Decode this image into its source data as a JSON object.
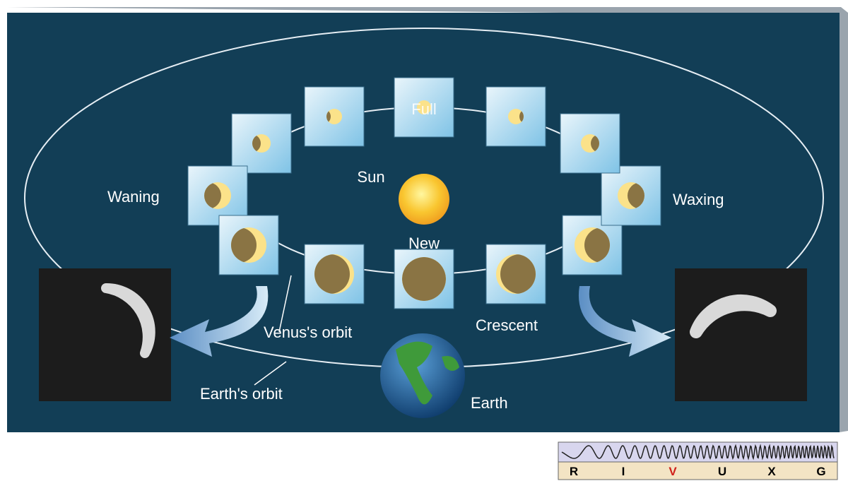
{
  "labels": {
    "full": "Full",
    "sun": "Sun",
    "new": "New",
    "waning": "Waning",
    "waxing": "Waxing",
    "crescent": "Crescent",
    "venus_orbit": "Venus's orbit",
    "earth_orbit": "Earth's orbit",
    "earth": "Earth"
  },
  "spectrum": {
    "letters": [
      "R",
      "I",
      "V",
      "U",
      "X",
      "G"
    ]
  }
}
